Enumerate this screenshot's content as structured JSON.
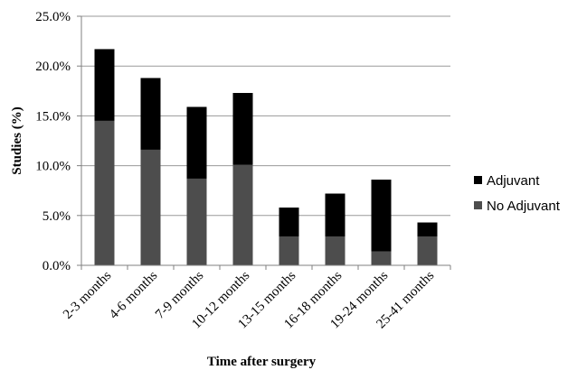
{
  "chart_data": {
    "type": "bar",
    "stacked": true,
    "categories": [
      "2-3 months",
      "4-6 months",
      "7-9 months",
      "10-12 months",
      "13-15 months",
      "16-18 months",
      "19-24 months",
      "25-41 months"
    ],
    "series": [
      {
        "name": "No Adjuvant",
        "color": "#4d4d4d",
        "values": [
          14.5,
          11.6,
          8.7,
          10.1,
          2.9,
          2.9,
          1.4,
          2.9
        ]
      },
      {
        "name": "Adjuvant",
        "color": "#000000",
        "values": [
          7.2,
          7.2,
          7.2,
          7.2,
          2.9,
          4.3,
          7.2,
          1.4
        ]
      }
    ],
    "xlabel": "Time after surgery",
    "ylabel": "Studies (%)",
    "ylim": [
      0,
      25
    ],
    "yticks": [
      "0.0%",
      "5.0%",
      "10.0%",
      "15.0%",
      "20.0%",
      "25.0%"
    ],
    "ytick_values": [
      0,
      5,
      10,
      15,
      20,
      25
    ],
    "grid": true,
    "legend_position": "right",
    "legend": [
      "Adjuvant",
      "No Adjuvant"
    ]
  }
}
